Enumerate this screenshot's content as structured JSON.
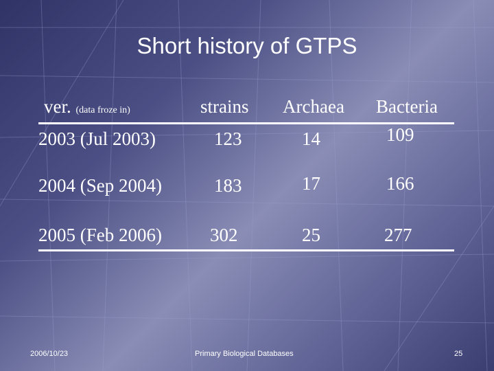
{
  "title": "Short history of GTPS",
  "table": {
    "header": {
      "ver": "ver.",
      "ver_note": "(data froze in)",
      "strains": "strains",
      "archaea": "Archaea",
      "bacteria": "Bacteria"
    },
    "rows": [
      {
        "version": "2003 (Jul 2003)",
        "strains": "123",
        "archaea": "14",
        "bacteria": "109"
      },
      {
        "version": "2004 (Sep 2004)",
        "strains": "183",
        "archaea": "17",
        "bacteria": "166"
      },
      {
        "version": "2005 (Feb 2006)",
        "strains": "302",
        "archaea": "25",
        "bacteria": "277"
      }
    ]
  },
  "footer": {
    "date": "2006/10/23",
    "center": "Primary Biological Databases",
    "page": "25"
  },
  "colors": {
    "text": "#ffffff",
    "background": "#4b4f84"
  }
}
